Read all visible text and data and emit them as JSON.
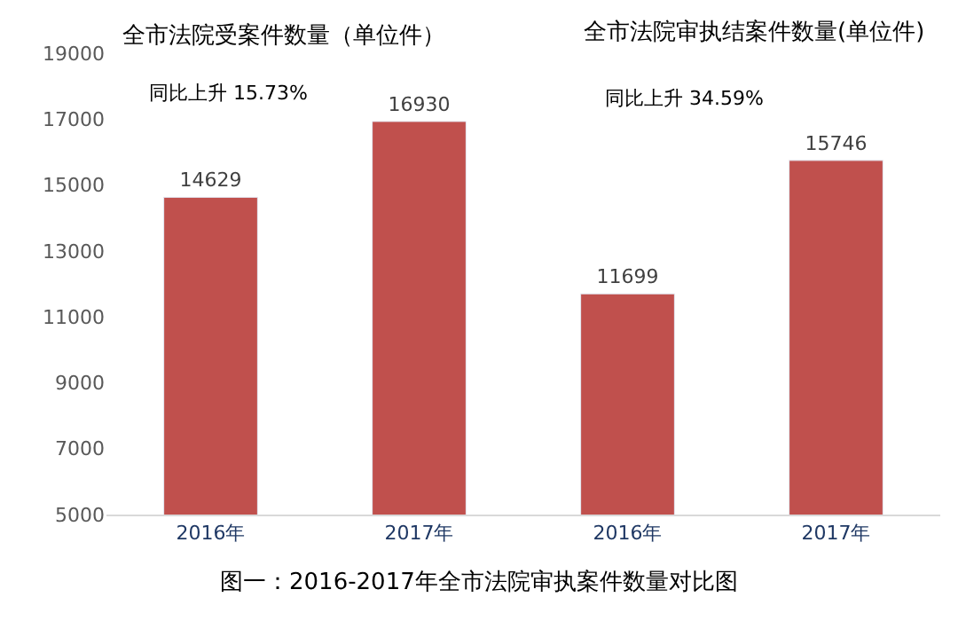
{
  "chart_data": {
    "type": "bar",
    "categories": [
      "2016年",
      "2017年",
      "2016年",
      "2017年"
    ],
    "values": [
      14629,
      16930,
      11699,
      15746
    ],
    "color": "#c0504d",
    "ylim": [
      5000,
      19000
    ],
    "yticks": [
      5000,
      7000,
      9000,
      11000,
      13000,
      15000,
      17000,
      19000
    ],
    "grid": false,
    "data_labels": true,
    "annotations": [
      "全市法院受案件数量（单位件）",
      "同比上升 15.73%",
      "全市法院审执结案件数量(单位件)",
      "同比上升 34.59%",
      "图一：2016-2017年全市法院审执案件数量对比图"
    ]
  }
}
